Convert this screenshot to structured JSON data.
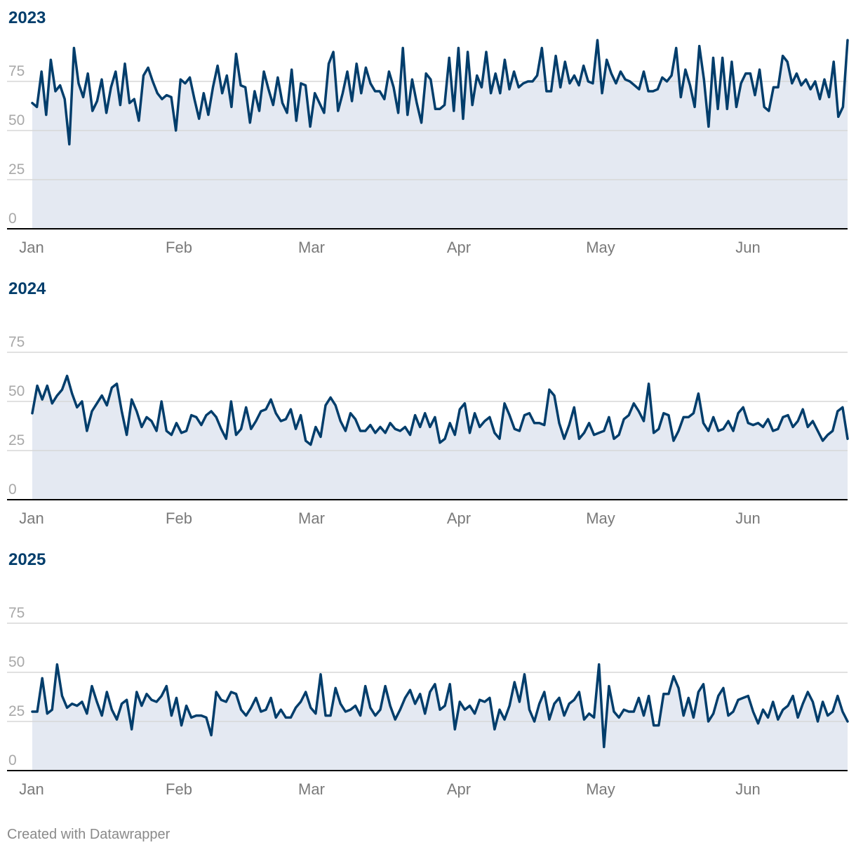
{
  "footer": {
    "text": "Created with Datawrapper"
  },
  "colors": {
    "line": "#003d6b",
    "area": "#e4e9f2",
    "grid": "#d7d7d7",
    "axis": "#000000",
    "title": "#003d6b",
    "tick_text": "#a8a8a8",
    "month_text": "#7a7a7a"
  },
  "chart_data": [
    {
      "type": "area",
      "title": "2023",
      "ylim": [
        0,
        100
      ],
      "y_ticks": [
        0,
        25,
        50,
        75
      ],
      "x_ticks": [
        "Jan",
        "Feb",
        "Mar",
        "Apr",
        "May",
        "Jun"
      ],
      "grid": true,
      "x_start": "2023-01-01",
      "values": [
        64,
        62,
        80,
        58,
        86,
        70,
        73,
        66,
        43,
        92,
        74,
        67,
        79,
        60,
        65,
        76,
        59,
        72,
        80,
        63,
        84,
        64,
        66,
        55,
        78,
        82,
        75,
        69,
        66,
        68,
        67,
        50,
        76,
        74,
        77,
        66,
        56,
        69,
        58,
        72,
        83,
        69,
        78,
        62,
        89,
        73,
        72,
        54,
        70,
        60,
        80,
        71,
        63,
        77,
        64,
        59,
        81,
        55,
        74,
        73,
        52,
        69,
        64,
        59,
        84,
        90,
        60,
        69,
        80,
        65,
        84,
        69,
        82,
        74,
        70,
        70,
        66,
        80,
        72,
        59,
        92,
        58,
        76,
        64,
        54,
        79,
        76,
        61,
        61,
        63,
        87,
        60,
        92,
        56,
        90,
        63,
        78,
        72,
        90,
        69,
        79,
        69,
        86,
        71,
        80,
        72,
        74,
        75,
        75,
        78,
        92,
        70,
        70,
        88,
        72,
        85,
        74,
        78,
        73,
        83,
        75,
        74,
        96,
        69,
        86,
        79,
        74,
        80,
        76,
        75,
        73,
        71,
        80,
        70,
        70,
        71,
        77,
        75,
        78,
        92,
        67,
        81,
        73,
        62,
        93,
        76,
        52,
        87,
        61,
        87,
        61,
        85,
        62,
        74,
        79,
        79,
        68,
        81,
        62,
        60,
        72,
        72,
        88,
        85,
        74,
        79,
        73,
        76,
        71,
        75,
        66,
        76,
        67,
        85,
        57,
        62,
        96
      ],
      "series": [
        {
          "name": "",
          "values": []
        }
      ]
    },
    {
      "type": "area",
      "title": "2024",
      "ylim": [
        0,
        100
      ],
      "y_ticks": [
        0,
        25,
        50,
        75
      ],
      "x_ticks": [
        "Jan",
        "Feb",
        "Mar",
        "Apr",
        "May",
        "Jun"
      ],
      "grid": true,
      "x_start": "2024-01-01",
      "values": [
        44,
        58,
        51,
        58,
        49,
        53,
        56,
        63,
        54,
        47,
        50,
        35,
        45,
        49,
        53,
        48,
        57,
        59,
        45,
        33,
        51,
        45,
        37,
        42,
        40,
        35,
        50,
        35,
        33,
        39,
        34,
        35,
        43,
        42,
        38,
        43,
        45,
        42,
        36,
        31,
        50,
        33,
        36,
        47,
        36,
        40,
        45,
        46,
        51,
        44,
        40,
        41,
        46,
        36,
        43,
        30,
        28,
        37,
        32,
        48,
        52,
        48,
        40,
        35,
        44,
        41,
        35,
        35,
        38,
        34,
        37,
        34,
        39,
        36,
        35,
        37,
        33,
        43,
        37,
        44,
        37,
        42,
        29,
        31,
        39,
        33,
        46,
        49,
        34,
        44,
        37,
        40,
        42,
        34,
        31,
        49,
        43,
        36,
        35,
        43,
        44,
        39,
        39,
        38,
        56,
        53,
        39,
        31,
        38,
        47,
        31,
        34,
        39,
        33,
        34,
        35,
        42,
        31,
        33,
        41,
        43,
        49,
        45,
        40,
        59,
        34,
        36,
        44,
        43,
        30,
        35,
        42,
        42,
        44,
        54,
        39,
        35,
        42,
        35,
        36,
        40,
        35,
        44,
        47,
        39,
        38,
        39,
        37,
        41,
        35,
        36,
        42,
        43,
        37,
        40,
        46,
        37,
        40,
        35,
        30,
        33,
        35,
        45,
        47,
        31
      ]
    },
    {
      "type": "area",
      "title": "2025",
      "ylim": [
        0,
        100
      ],
      "y_ticks": [
        0,
        25,
        50,
        75
      ],
      "x_ticks": [
        "Jan",
        "Feb",
        "Mar",
        "Apr",
        "May",
        "Jun"
      ],
      "grid": true,
      "x_start": "2025-01-01",
      "values": [
        30,
        30,
        47,
        29,
        31,
        54,
        38,
        32,
        34,
        33,
        35,
        29,
        43,
        35,
        28,
        40,
        31,
        26,
        34,
        36,
        21,
        40,
        33,
        39,
        36,
        35,
        38,
        43,
        28,
        37,
        23,
        33,
        27,
        28,
        28,
        27,
        18,
        40,
        36,
        35,
        40,
        39,
        31,
        28,
        32,
        37,
        30,
        31,
        37,
        27,
        31,
        27,
        27,
        32,
        35,
        40,
        32,
        29,
        49,
        28,
        28,
        42,
        34,
        30,
        31,
        33,
        28,
        43,
        32,
        28,
        31,
        43,
        33,
        26,
        31,
        37,
        41,
        34,
        39,
        29,
        40,
        44,
        31,
        33,
        44,
        21,
        35,
        31,
        33,
        29,
        36,
        35,
        37,
        21,
        31,
        26,
        33,
        45,
        35,
        49,
        31,
        25,
        34,
        40,
        26,
        34,
        37,
        28,
        34,
        36,
        40,
        26,
        29,
        27,
        54,
        12,
        43,
        30,
        27,
        31,
        30,
        30,
        37,
        28,
        38,
        23,
        23,
        39,
        39,
        48,
        42,
        28,
        37,
        27,
        40,
        44,
        25,
        29,
        38,
        42,
        28,
        30,
        36,
        37,
        38,
        30,
        24,
        31,
        27,
        35,
        26,
        31,
        33,
        38,
        27,
        34,
        40,
        35,
        25,
        35,
        28,
        30,
        38,
        30,
        25
      ]
    }
  ]
}
